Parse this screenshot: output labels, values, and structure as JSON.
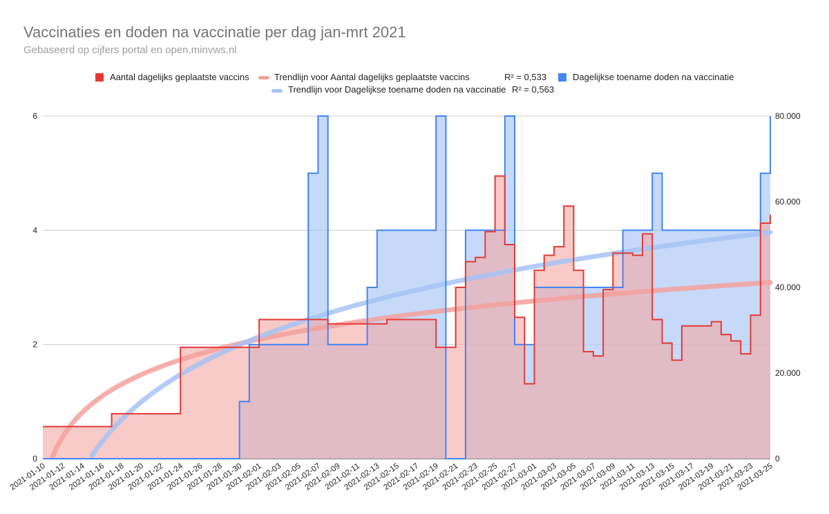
{
  "title": "Vaccinaties en doden na vaccinatie per dag jan-mrt 2021",
  "subtitle": "Gebaseerd op cijfers portal en open.minvws.nl",
  "legend": {
    "vaccins": "Aantal dagelijks geplaatste vaccins",
    "trend_vaccins": "Trendlijn voor Aantal dagelijks geplaatste vaccins",
    "r2_vaccins": "R² = 0,533",
    "doden": "Dagelijkse toename doden na vaccinatie",
    "trend_doden": "Trendlijn voor Dagelijkse toename doden na vaccinatie",
    "r2_doden": "R² = 0,563"
  },
  "colors": {
    "vaccins": "#e53935",
    "vaccins_fill": "#f4a6a3",
    "doden": "#4285f4",
    "doden_fill": "#a8c4f5",
    "trend_vaccins": "#f3a19c",
    "trend_doden": "#a6c3f4",
    "grid": "#cccccc"
  },
  "chart_data": {
    "type": "area",
    "x": [
      "2021-01-10",
      "2021-01-11",
      "2021-01-12",
      "2021-01-13",
      "2021-01-14",
      "2021-01-15",
      "2021-01-16",
      "2021-01-17",
      "2021-01-18",
      "2021-01-19",
      "2021-01-20",
      "2021-01-21",
      "2021-01-22",
      "2021-01-23",
      "2021-01-24",
      "2021-01-25",
      "2021-01-26",
      "2021-01-27",
      "2021-01-28",
      "2021-01-29",
      "2021-01-30",
      "2021-01-31",
      "2021-02-01",
      "2021-02-02",
      "2021-02-03",
      "2021-02-04",
      "2021-02-05",
      "2021-02-06",
      "2021-02-07",
      "2021-02-08",
      "2021-02-09",
      "2021-02-10",
      "2021-02-11",
      "2021-02-12",
      "2021-02-13",
      "2021-02-14",
      "2021-02-15",
      "2021-02-16",
      "2021-02-17",
      "2021-02-18",
      "2021-02-19",
      "2021-02-20",
      "2021-02-21",
      "2021-02-22",
      "2021-02-23",
      "2021-02-24",
      "2021-02-25",
      "2021-02-26",
      "2021-02-27",
      "2021-02-28",
      "2021-03-01",
      "2021-03-02",
      "2021-03-03",
      "2021-03-04",
      "2021-03-05",
      "2021-03-06",
      "2021-03-07",
      "2021-03-08",
      "2021-03-09",
      "2021-03-10",
      "2021-03-11",
      "2021-03-12",
      "2021-03-13",
      "2021-03-14",
      "2021-03-15",
      "2021-03-16",
      "2021-03-17",
      "2021-03-18",
      "2021-03-19",
      "2021-03-20",
      "2021-03-21",
      "2021-03-22",
      "2021-03-23",
      "2021-03-24",
      "2021-03-25"
    ],
    "x_tick_labels": [
      "2021-01-10",
      "2021-01-12",
      "2021-01-14",
      "2021-01-16",
      "2021-01-18",
      "2021-01-20",
      "2021-01-22",
      "2021-01-24",
      "2021-01-26",
      "2021-01-28",
      "2021-01-30",
      "2021-02-01",
      "2021-02-03",
      "2021-02-05",
      "2021-02-07",
      "2021-02-09",
      "2021-02-11",
      "2021-02-13",
      "2021-02-15",
      "2021-02-17",
      "2021-02-19",
      "2021-02-21",
      "2021-02-23",
      "2021-02-25",
      "2021-02-27",
      "2021-03-01",
      "2021-03-03",
      "2021-03-05",
      "2021-03-07",
      "2021-03-09",
      "2021-03-11",
      "2021-03-13",
      "2021-03-15",
      "2021-03-17",
      "2021-03-19",
      "2021-03-21",
      "2021-03-23",
      "2021-03-25"
    ],
    "series": [
      {
        "name": "Aantal dagelijks geplaatste vaccins",
        "axis": "right",
        "values": [
          7500,
          7500,
          7500,
          7500,
          7500,
          7500,
          7500,
          10500,
          10500,
          10500,
          10500,
          10500,
          10500,
          10500,
          26000,
          26000,
          26000,
          26000,
          26000,
          26000,
          26000,
          26000,
          32500,
          32500,
          32500,
          32500,
          32500,
          32500,
          32500,
          31500,
          31500,
          31500,
          31500,
          31500,
          31500,
          32500,
          32500,
          32500,
          32500,
          32500,
          26000,
          26000,
          40000,
          46000,
          47000,
          53000,
          66000,
          50000,
          33000,
          17500,
          44000,
          47500,
          49500,
          59000,
          44000,
          25000,
          24000,
          39500,
          48000,
          48000,
          47500,
          52500,
          32500,
          27000,
          23000,
          31000,
          31000,
          31000,
          32000,
          29000,
          27500,
          24500,
          33500,
          55000,
          57000
        ]
      },
      {
        "name": "Dagelijkse toename doden na vaccinatie",
        "axis": "left",
        "values": [
          0,
          0,
          0,
          0,
          0,
          0,
          0,
          0,
          0,
          0,
          0,
          0,
          0,
          0,
          0,
          0,
          0,
          0,
          0,
          0,
          1,
          2,
          2,
          2,
          2,
          2,
          2,
          5,
          6,
          2,
          2,
          2,
          2,
          3,
          4,
          4,
          4,
          4,
          4,
          4,
          6,
          0,
          0,
          4,
          4,
          4,
          4,
          6,
          2,
          2,
          3,
          3,
          3,
          3,
          3,
          3,
          3,
          3,
          3,
          4,
          4,
          4,
          5,
          4,
          4,
          4,
          4,
          4,
          4,
          4,
          4,
          4,
          4,
          5,
          6
        ]
      }
    ],
    "trendlines": [
      {
        "name": "Trendlijn voor Aantal dagelijks geplaatste vaccins",
        "r2": "R² = 0,533"
      },
      {
        "name": "Trendlijn voor Dagelijkse toename doden na vaccinatie",
        "r2": "R² = 0,563"
      }
    ],
    "left_axis": {
      "ticks": [
        "0",
        "2",
        "4",
        "6"
      ],
      "ylim": [
        0,
        6
      ]
    },
    "right_axis": {
      "ticks": [
        "0",
        "20.000",
        "40.000",
        "60.000",
        "80.000"
      ],
      "ylim": [
        0,
        80000
      ]
    },
    "grid": true,
    "legend_position": "top"
  }
}
